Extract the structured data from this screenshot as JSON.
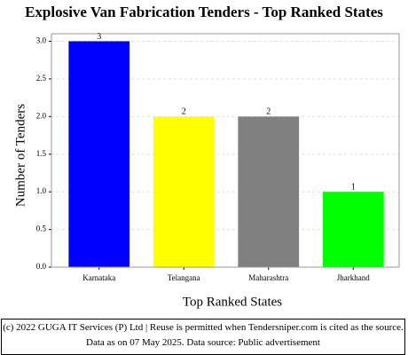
{
  "chart_data": {
    "type": "bar",
    "title": "Explosive Van Fabrication Tenders - Top Ranked States",
    "x_label": "Top Ranked States",
    "y_label": "Number of Tenders",
    "categories": [
      "Karnataka",
      "Telangana",
      "Maharashtra",
      "Jharkhand"
    ],
    "values": [
      3,
      2,
      2,
      1
    ],
    "colors": [
      "#0000ff",
      "#ffff00",
      "#808080",
      "#00ff00"
    ],
    "ylim": [
      0,
      3.1
    ],
    "yticks": [
      {
        "value": 0,
        "label": "0.0"
      },
      0.5,
      {
        "value": 1,
        "label": "1.0"
      },
      1.5,
      {
        "value": 2,
        "label": "2.0"
      },
      2.5,
      {
        "value": 3,
        "label": "3.0"
      }
    ],
    "grid": true
  },
  "footer": "(c) 2022 GUGA IT Services (P) Ltd | Reuse is permitted when Tendersniper.com is cited as the source. Data as on 07 May 2025. Data source: Public advertisement"
}
